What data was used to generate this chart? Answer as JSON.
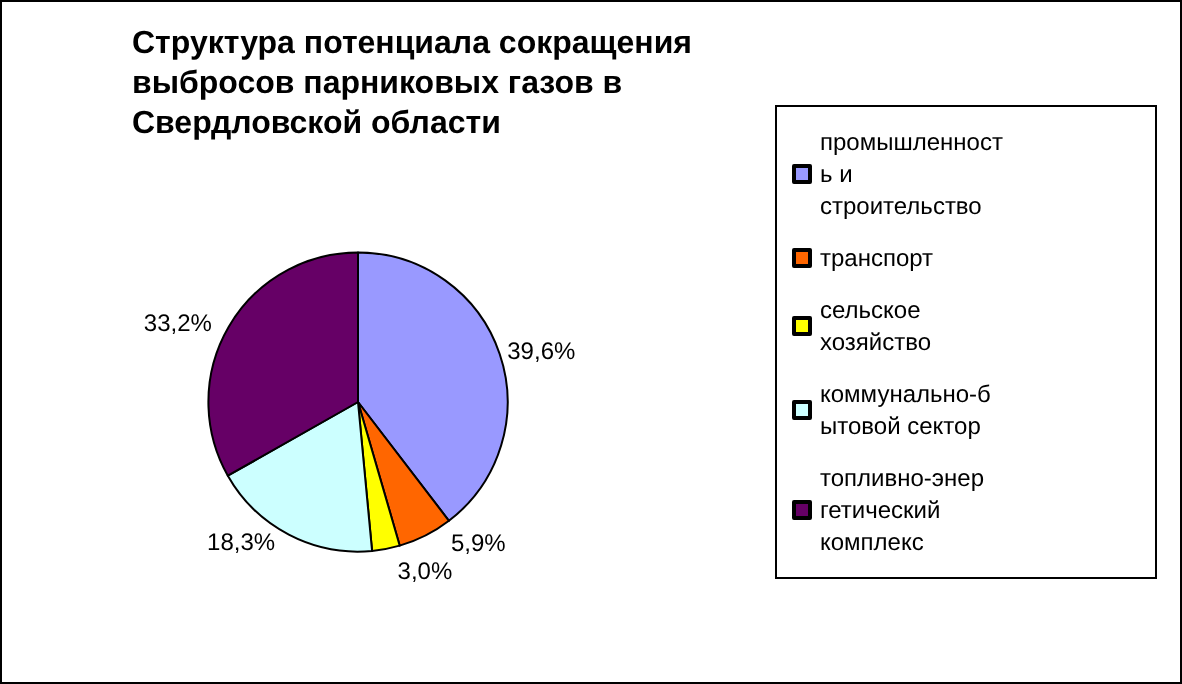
{
  "chart_data": {
    "type": "pie",
    "title": "Структура потенциала сокращения выбросов парниковых газов в Свердловской области",
    "categories": [
      "промышленность и строительство",
      "транспорт",
      "сельское хозяйство",
      "коммунально-бытовой сектор",
      "топливно-энергетический комплекс"
    ],
    "values": [
      39.6,
      5.9,
      3.0,
      18.3,
      33.2
    ],
    "value_labels": [
      "39,6%",
      "5,9%",
      "3,0%",
      "18,3%",
      "33,2%"
    ],
    "colors": [
      "#9999ff",
      "#ff6600",
      "#ffff00",
      "#ccffff",
      "#660066"
    ],
    "legend": "right"
  }
}
